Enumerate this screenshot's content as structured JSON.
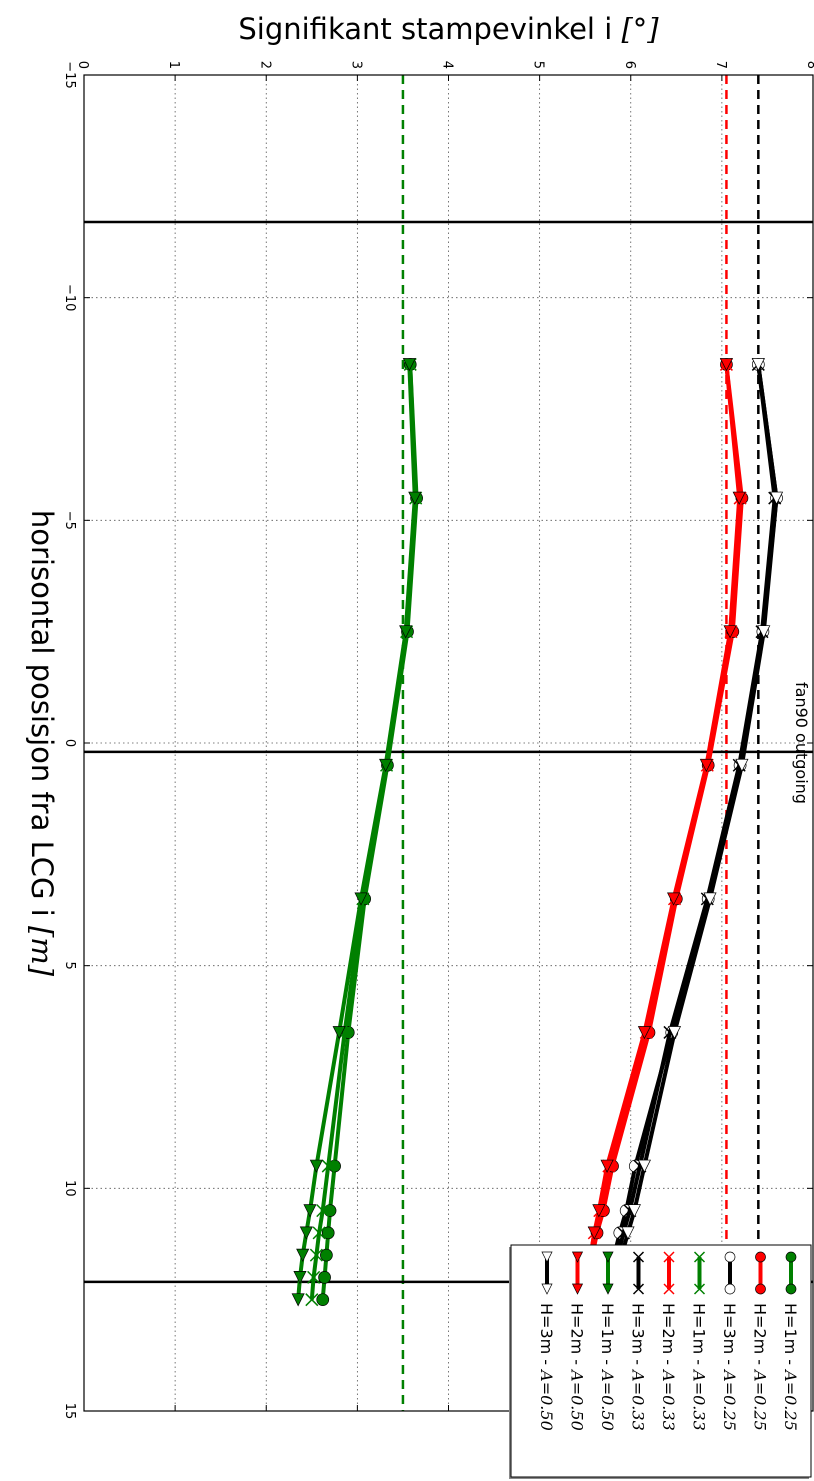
{
  "chart_data": {
    "type": "line",
    "title": "fan90 outgoing",
    "xlabel_text": "horisontal posisjon fra LCG i ",
    "xlabel_math": "[m]",
    "ylabel_text": "Signifikant stampevinkel i ",
    "ylabel_math": "[°]",
    "xlim": [
      -15,
      15
    ],
    "ylim": [
      0,
      8
    ],
    "x_ticks": [
      -15,
      -10,
      -5,
      0,
      5,
      10,
      15
    ],
    "x_tick_labels": [
      "−15",
      "−10",
      "−5",
      "0",
      "5",
      "10",
      "15"
    ],
    "y_ticks": [
      0,
      1,
      2,
      3,
      4,
      5,
      6,
      7,
      8
    ],
    "y_tick_labels": [
      "0",
      "1",
      "2",
      "3",
      "4",
      "5",
      "6",
      "7",
      "8"
    ],
    "grid": true,
    "legend_position": "outside-top",
    "vertical_lines": [
      -11.7,
      0.2,
      12.1
    ],
    "reference_lines": [
      {
        "y": 7.4,
        "color": "#000000"
      },
      {
        "y": 7.05,
        "color": "#ff0000"
      },
      {
        "y": 3.5,
        "color": "#008000"
      }
    ],
    "x": [
      -8.5,
      -5.5,
      -2.5,
      0.5,
      3.5,
      6.5,
      9.5,
      10.5,
      11.0,
      11.5,
      12.0,
      12.5
    ],
    "series": [
      {
        "name": "H=1m - A=0.25",
        "label_text": "H=1m - ",
        "label_math": "A=0.25",
        "color": "#008000",
        "marker": "circle",
        "fill": "#008000",
        "values": [
          3.58,
          3.65,
          3.55,
          3.33,
          3.08,
          2.9,
          2.75,
          2.7,
          2.68,
          2.66,
          2.64,
          2.62
        ]
      },
      {
        "name": "H=2m - A=0.25",
        "label_text": "H=2m - ",
        "label_math": "A=0.25",
        "color": "#ff0000",
        "marker": "circle",
        "fill": "#ff0000",
        "values": [
          7.05,
          7.22,
          7.12,
          6.85,
          6.5,
          6.2,
          5.8,
          5.7,
          5.63,
          5.58,
          5.53,
          5.48
        ]
      },
      {
        "name": "H=3m - A=0.25",
        "label_text": "H=3m - ",
        "label_math": "A=0.25",
        "color": "#000000",
        "marker": "circle",
        "fill": "#ffffff",
        "values": [
          7.4,
          7.6,
          7.45,
          7.2,
          6.85,
          6.45,
          6.05,
          5.95,
          5.88,
          5.82,
          5.76,
          5.7
        ]
      },
      {
        "name": "H=1m - A=0.33",
        "label_text": "H=1m - ",
        "label_math": "A=0.33",
        "color": "#008000",
        "marker": "x",
        "fill": "#008000",
        "values": [
          3.58,
          3.64,
          3.54,
          3.32,
          3.06,
          2.86,
          2.68,
          2.62,
          2.58,
          2.55,
          2.52,
          2.5
        ]
      },
      {
        "name": "H=2m - A=0.33",
        "label_text": "H=2m - ",
        "label_math": "A=0.33",
        "color": "#ff0000",
        "marker": "x",
        "fill": "#ff0000",
        "values": [
          7.05,
          7.2,
          7.1,
          6.84,
          6.48,
          6.17,
          5.76,
          5.66,
          5.6,
          5.56,
          5.52,
          5.48
        ]
      },
      {
        "name": "H=3m - A=0.33",
        "label_text": "H=3m - ",
        "label_math": "A=0.33",
        "color": "#000000",
        "marker": "x",
        "fill": "#000000",
        "values": [
          7.4,
          7.58,
          7.44,
          7.19,
          6.84,
          6.43,
          6.1,
          5.99,
          5.92,
          5.86,
          5.8,
          5.74
        ]
      },
      {
        "name": "H=1m - A=0.50",
        "label_text": "H=1m - ",
        "label_math": "A=0.50",
        "color": "#008000",
        "marker": "triangle-right",
        "fill": "#008000",
        "values": [
          3.57,
          3.63,
          3.53,
          3.31,
          3.04,
          2.8,
          2.55,
          2.48,
          2.44,
          2.4,
          2.37,
          2.35
        ]
      },
      {
        "name": "H=2m - A=0.50",
        "label_text": "H=2m - ",
        "label_math": "A=0.50",
        "color": "#ff0000",
        "marker": "triangle-right",
        "fill": "#ff0000",
        "values": [
          7.05,
          7.19,
          7.09,
          6.83,
          6.47,
          6.15,
          5.74,
          5.65,
          5.6,
          5.56,
          5.52,
          5.5
        ]
      },
      {
        "name": "H=3m - A=0.50",
        "label_text": "H=3m - ",
        "label_math": "A=0.50",
        "color": "#000000",
        "marker": "triangle-right",
        "fill": "#ffffff",
        "values": [
          7.4,
          7.6,
          7.46,
          7.22,
          6.87,
          6.48,
          6.15,
          6.04,
          5.97,
          5.9,
          5.84,
          5.78
        ]
      }
    ]
  }
}
